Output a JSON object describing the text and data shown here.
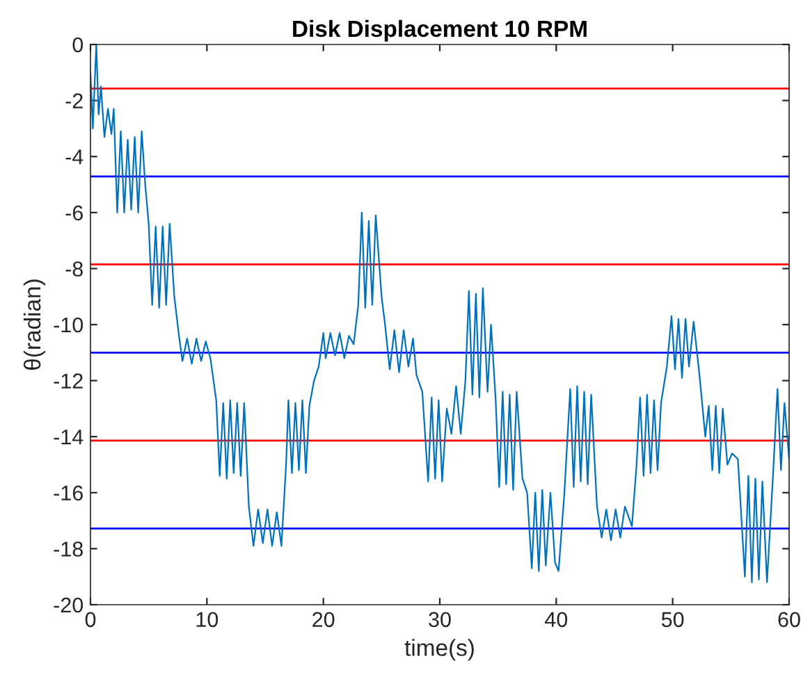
{
  "chart_data": {
    "type": "line",
    "title": "Disk Displacement 10 RPM",
    "xlabel": "time(s)",
    "ylabel": "θ(radian)",
    "xlim": [
      0,
      60
    ],
    "ylim": [
      -20,
      0
    ],
    "xticks": [
      0,
      10,
      20,
      30,
      40,
      50,
      60
    ],
    "yticks": [
      -20,
      -18,
      -16,
      -14,
      -12,
      -10,
      -8,
      -6,
      -4,
      -2,
      0
    ],
    "grid": false,
    "legend": false,
    "marker": "none",
    "line_style": "solid",
    "series": [
      {
        "color": "#0072bd",
        "x": [
          0,
          0.2,
          0.5,
          0.7,
          0.9,
          1.2,
          1.5,
          1.8,
          2.0,
          2.3,
          2.6,
          2.9,
          3.2,
          3.5,
          3.8,
          4.1,
          4.4,
          4.7,
          5.0,
          5.3,
          5.6,
          5.9,
          6.2,
          6.5,
          6.8,
          7.2,
          7.6,
          7.9,
          8.3,
          8.7,
          9.1,
          9.5,
          9.9,
          10.3,
          10.8,
          11.1,
          11.4,
          11.7,
          12.0,
          12.3,
          12.6,
          12.9,
          13.2,
          13.6,
          14.0,
          14.4,
          14.8,
          15.2,
          15.6,
          16.0,
          16.4,
          16.8,
          17.0,
          17.3,
          17.6,
          17.9,
          18.2,
          18.5,
          18.8,
          19.2,
          19.6,
          20.0,
          20.2,
          20.6,
          21.0,
          21.4,
          21.8,
          22.2,
          22.6,
          23.0,
          23.3,
          23.6,
          23.9,
          24.2,
          24.5,
          25.0,
          25.3,
          25.7,
          26.1,
          26.5,
          26.9,
          27.3,
          27.7,
          28.0,
          28.5,
          29.0,
          29.3,
          29.6,
          29.9,
          30.2,
          30.6,
          31.0,
          31.4,
          31.8,
          32.2,
          32.5,
          32.8,
          33.1,
          33.4,
          33.7,
          34.1,
          34.4,
          34.8,
          35.1,
          35.4,
          35.7,
          36.0,
          36.3,
          36.6,
          37.1,
          37.5,
          37.9,
          38.2,
          38.5,
          38.8,
          39.1,
          39.5,
          39.9,
          40.2,
          40.7,
          41.2,
          41.5,
          41.8,
          42.1,
          42.4,
          42.7,
          43.0,
          43.5,
          43.9,
          44.3,
          44.7,
          45.1,
          45.5,
          45.9,
          46.5,
          46.9,
          47.2,
          47.5,
          47.8,
          48.1,
          48.4,
          48.7,
          49.0,
          49.5,
          49.9,
          50.2,
          50.5,
          50.8,
          51.1,
          51.4,
          51.8,
          52.3,
          52.8,
          53.1,
          53.4,
          53.7,
          54.0,
          54.3,
          54.7,
          55.1,
          55.6,
          56.2,
          56.5,
          56.8,
          57.1,
          57.4,
          57.7,
          58.1,
          58.6,
          59.0,
          59.3,
          59.6,
          60.0
        ],
        "values": [
          -1,
          -3,
          0,
          -2.5,
          -1.5,
          -3.3,
          -2.3,
          -3.2,
          -2.3,
          -6.0,
          -3.1,
          -6.0,
          -3.4,
          -5.9,
          -3.3,
          -6.0,
          -3.1,
          -5.0,
          -6.4,
          -9.3,
          -6.5,
          -9.4,
          -6.5,
          -9.3,
          -6.4,
          -9.0,
          -10.4,
          -11.3,
          -10.5,
          -11.4,
          -10.5,
          -11.3,
          -10.6,
          -11.2,
          -12.7,
          -15.4,
          -12.8,
          -15.5,
          -12.7,
          -15.3,
          -12.8,
          -15.4,
          -12.8,
          -16.5,
          -17.9,
          -16.6,
          -17.8,
          -16.6,
          -17.9,
          -16.7,
          -17.9,
          -15.0,
          -12.7,
          -15.3,
          -12.8,
          -15.2,
          -12.7,
          -15.3,
          -12.9,
          -12.0,
          -11.5,
          -10.3,
          -11.2,
          -10.3,
          -11.1,
          -10.3,
          -11.2,
          -10.4,
          -10.7,
          -9.3,
          -6.0,
          -9.4,
          -6.3,
          -9.3,
          -6.1,
          -9.0,
          -10.0,
          -11.6,
          -10.2,
          -11.7,
          -10.2,
          -11.5,
          -10.5,
          -11.8,
          -12.4,
          -15.6,
          -12.6,
          -15.5,
          -12.7,
          -15.6,
          -13.0,
          -13.9,
          -12.2,
          -13.9,
          -12.0,
          -8.8,
          -12.5,
          -8.9,
          -12.6,
          -8.7,
          -12.4,
          -10.0,
          -12.7,
          -15.8,
          -12.4,
          -15.7,
          -12.5,
          -15.9,
          -12.4,
          -15.5,
          -16.0,
          -18.7,
          -16.0,
          -18.8,
          -15.9,
          -18.6,
          -16.0,
          -18.5,
          -18.8,
          -16.0,
          -12.3,
          -15.8,
          -12.2,
          -15.6,
          -12.4,
          -15.7,
          -12.5,
          -16.5,
          -17.6,
          -16.6,
          -17.7,
          -16.6,
          -17.6,
          -16.5,
          -17.2,
          -15.0,
          -12.6,
          -15.4,
          -12.5,
          -15.3,
          -12.7,
          -15.2,
          -12.8,
          -11.5,
          -9.7,
          -11.6,
          -9.8,
          -11.9,
          -9.8,
          -11.5,
          -9.9,
          -11.8,
          -14.0,
          -12.9,
          -15.2,
          -12.9,
          -15.3,
          -13.0,
          -15.0,
          -14.6,
          -14.8,
          -19.0,
          -15.4,
          -19.2,
          -15.5,
          -19.1,
          -15.6,
          -19.2,
          -15.5,
          -12.3,
          -15.2,
          -12.8,
          -14.8
        ]
      }
    ],
    "ref_lines": [
      {
        "axis": "y",
        "value": -1.57,
        "color": "#ff0000"
      },
      {
        "axis": "y",
        "value": -4.71,
        "color": "#0000ff"
      },
      {
        "axis": "y",
        "value": -7.85,
        "color": "#ff0000"
      },
      {
        "axis": "y",
        "value": -11.0,
        "color": "#0000ff"
      },
      {
        "axis": "y",
        "value": -14.14,
        "color": "#ff0000"
      },
      {
        "axis": "y",
        "value": -17.28,
        "color": "#0000ff"
      }
    ]
  }
}
